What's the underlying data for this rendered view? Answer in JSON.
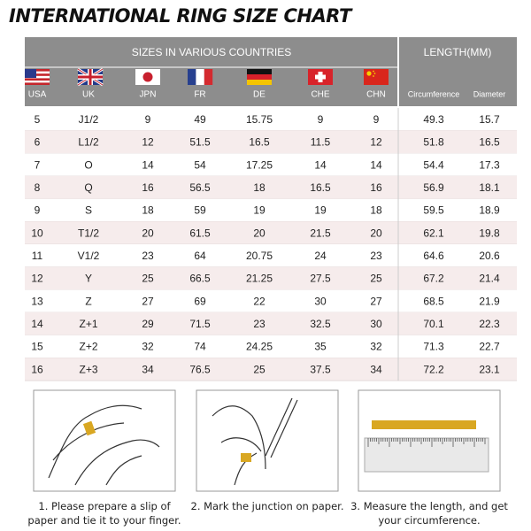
{
  "title": "INTERNATIONAL RING SIZE CHART",
  "table": {
    "group_headers": [
      "SIZES IN VARIOUS COUNTRIES",
      "LENGTH(MM)"
    ],
    "columns": [
      "USA",
      "UK",
      "JPN",
      "FR",
      "DE",
      "CHE",
      "CHN",
      "Circumference",
      "Diameter"
    ],
    "rows": [
      [
        5,
        "J1/2",
        9,
        49,
        15.75,
        9,
        9,
        49.3,
        15.7
      ],
      [
        6,
        "L1/2",
        12,
        51.5,
        16.5,
        11.5,
        12,
        51.8,
        16.5
      ],
      [
        7,
        "O",
        14,
        54,
        17.25,
        14,
        14,
        54.4,
        17.3
      ],
      [
        8,
        "Q",
        16,
        56.5,
        18,
        16.5,
        16,
        56.9,
        18.1
      ],
      [
        9,
        "S",
        18,
        59,
        19,
        19,
        18,
        59.5,
        18.9
      ],
      [
        10,
        "T1/2",
        20,
        61.5,
        20,
        21.5,
        20,
        62.1,
        19.8
      ],
      [
        11,
        "V1/2",
        23,
        64,
        20.75,
        24,
        23,
        64.6,
        20.6
      ],
      [
        12,
        "Y",
        25,
        66.5,
        21.25,
        27.5,
        25,
        67.2,
        21.4
      ],
      [
        13,
        "Z",
        27,
        69,
        22,
        30,
        27,
        68.5,
        21.9
      ],
      [
        14,
        "Z+1",
        29,
        71.5,
        23,
        32.5,
        30,
        70.1,
        22.3
      ],
      [
        15,
        "Z+2",
        32,
        74,
        24.25,
        35,
        32,
        71.3,
        22.7
      ],
      [
        16,
        "Z+3",
        34,
        76.5,
        25,
        37.5,
        34,
        72.2,
        23.1
      ]
    ]
  },
  "steps": [
    "1. Please prepare a slip of paper and tie it to your finger.",
    "2. Mark the junction on paper.",
    "3. Measure the length, and get your circumference."
  ]
}
